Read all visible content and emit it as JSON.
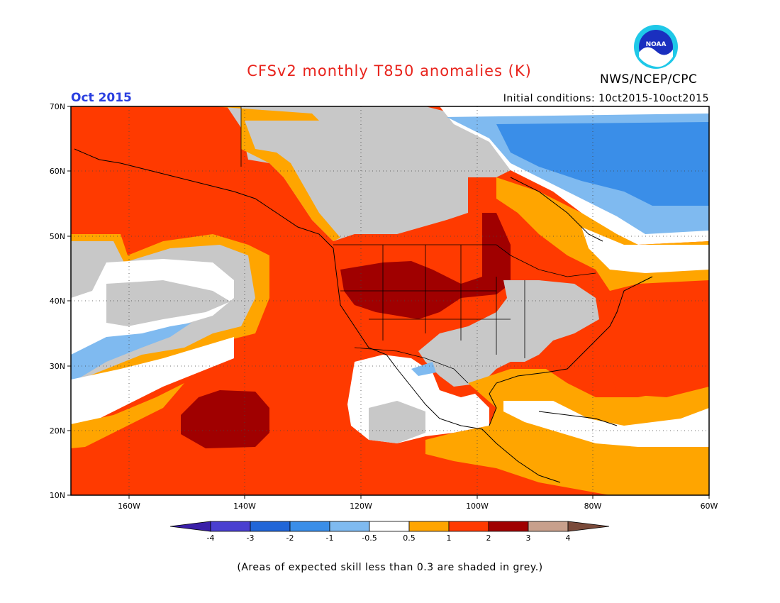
{
  "title": "CFSv2 monthly T850 anomalies (K)",
  "month_label": "Oct 2015",
  "agency": "NWS/NCEP/CPC",
  "initial_conditions": "Initial conditions: 10ct2015-10oct2015",
  "logo_text": "NOAA",
  "footnote": "(Areas of expected skill less than 0.3 are shaded in grey.)",
  "lat_labels": [
    "70N",
    "60N",
    "50N",
    "40N",
    "30N",
    "20N",
    "10N"
  ],
  "lon_labels": [
    "160W",
    "140W",
    "120W",
    "100W",
    "80W",
    "60W"
  ],
  "colorbar": {
    "labels": [
      "-4",
      "-3",
      "-2",
      "-1",
      "-0.5",
      "0.5",
      "1",
      "2",
      "3",
      "4"
    ],
    "colors": [
      "#3a1fa8",
      "#4a3fd0",
      "#2166d8",
      "#3a8ee8",
      "#7fbaf0",
      "#ffffff",
      "#ffa500",
      "#ff3a00",
      "#a00000",
      "#c8a08c",
      "#7a4a3a"
    ]
  },
  "colors": {
    "grey": "#c8c8c8",
    "white": "#ffffff",
    "light_blue": "#7fbaf0",
    "blue": "#3a8ee8",
    "orange": "#ffa500",
    "red_orange": "#ff3a00",
    "dark_red": "#a00000"
  }
}
